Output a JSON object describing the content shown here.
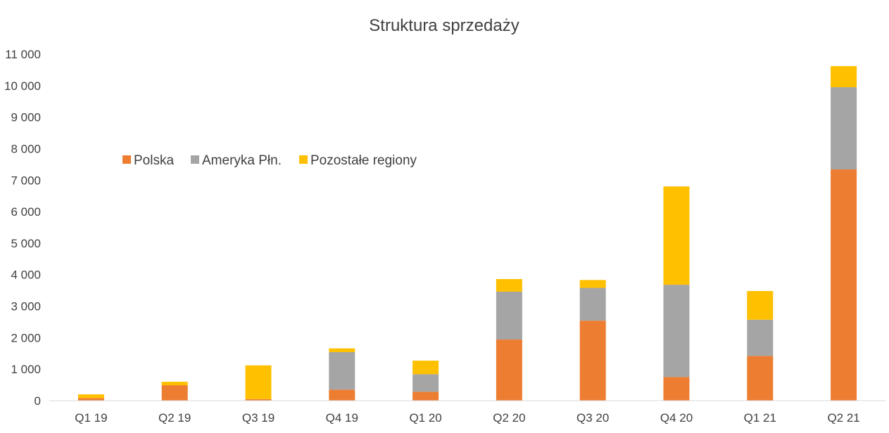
{
  "chart_data": {
    "type": "bar",
    "stacked": true,
    "title": "Struktura sprzedaży",
    "xlabel": "",
    "ylabel": "",
    "ylim": [
      0,
      11000
    ],
    "yticks": [
      0,
      1000,
      2000,
      3000,
      4000,
      5000,
      6000,
      7000,
      8000,
      9000,
      10000,
      11000
    ],
    "ytick_labels": [
      "0",
      "1 000",
      "2 000",
      "3 000",
      "4 000",
      "5 000",
      "6 000",
      "7 000",
      "8 000",
      "9 000",
      "10 000",
      "11 000"
    ],
    "categories": [
      "Q1 19",
      "Q2 19",
      "Q3 19",
      "Q4 19",
      "Q1 20",
      "Q2 20",
      "Q3 20",
      "Q4 20",
      "Q1 21",
      "Q2 21"
    ],
    "grid": false,
    "legend_position": "top-left",
    "series": [
      {
        "name": "Polska",
        "color": "#ED7D31",
        "values": [
          80,
          490,
          50,
          350,
          280,
          1940,
          2540,
          750,
          1420,
          7340
        ]
      },
      {
        "name": "Ameryka Płn.",
        "color": "#A5A5A5",
        "values": [
          0,
          0,
          0,
          1190,
          560,
          1520,
          1040,
          2930,
          1150,
          2610
        ]
      },
      {
        "name": "Pozostałe regiony",
        "color": "#FFC000",
        "values": [
          120,
          110,
          1070,
          120,
          430,
          400,
          250,
          3120,
          910,
          670
        ]
      }
    ]
  }
}
